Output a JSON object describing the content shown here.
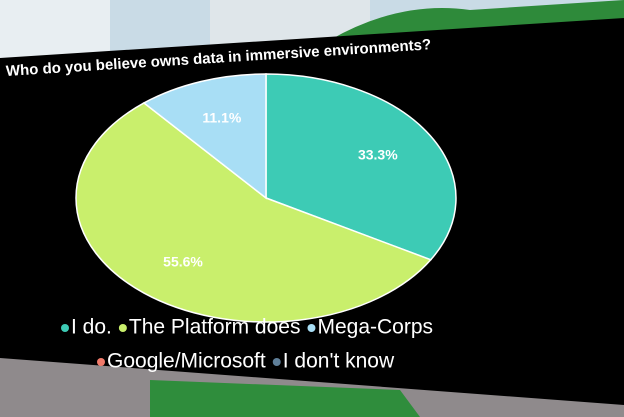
{
  "chart_data": {
    "type": "pie",
    "title": "Who do you believe owns data in immersive environments?",
    "categories": [
      "I do.",
      "The Platform does",
      "Mega-Corps",
      "Google/Microsoft",
      "I don't know"
    ],
    "values": [
      33.3,
      55.6,
      11.1,
      0,
      0
    ],
    "value_labels": [
      "33.3%",
      "55.6%",
      "11.1%",
      null,
      null
    ],
    "colors": [
      "#3dcbb5",
      "#c9ef6c",
      "#a8def5",
      "#f07a6a",
      "#5f7f99"
    ]
  }
}
